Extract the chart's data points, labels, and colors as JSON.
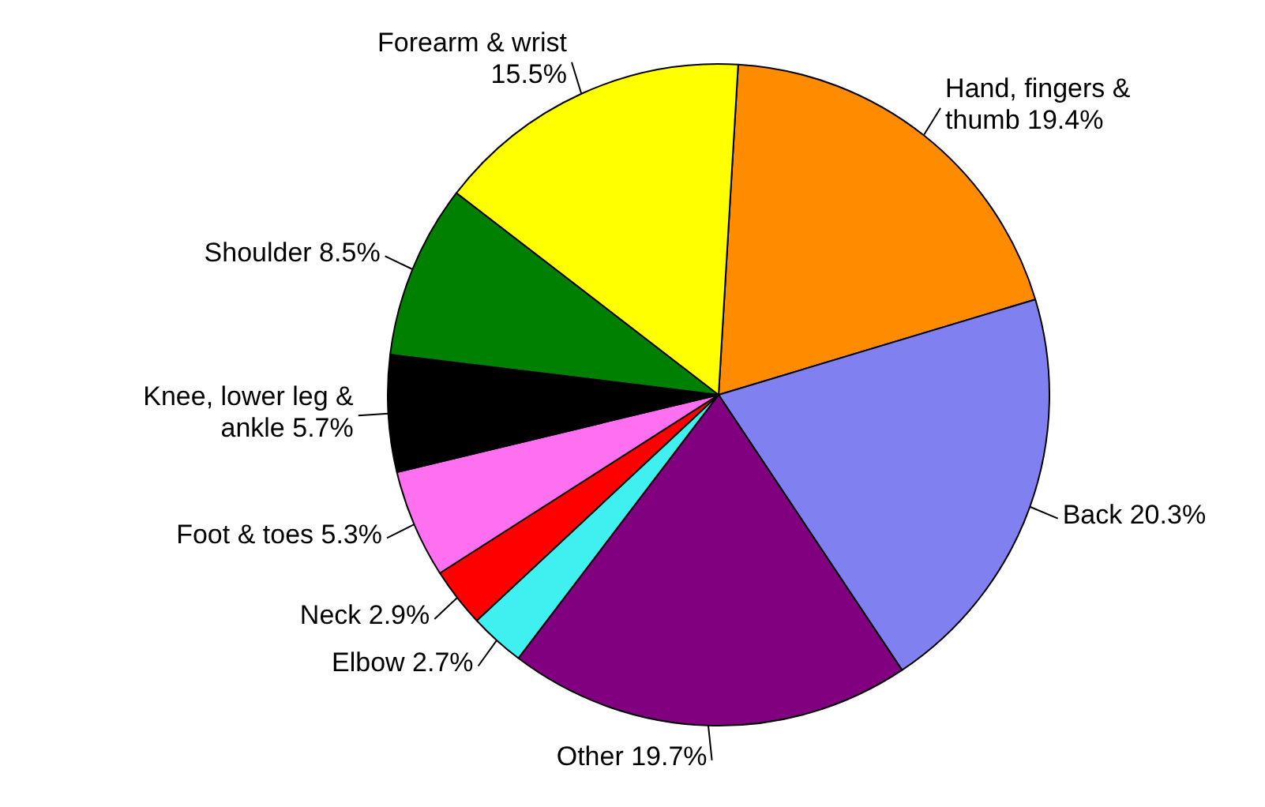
{
  "chart_data": {
    "type": "pie",
    "categories": [
      "Hand, fingers & thumb",
      "Back",
      "Other",
      "Elbow",
      "Neck",
      "Foot & toes",
      "Knee, lower leg & ankle",
      "Shoulder",
      "Forearm & wrist"
    ],
    "values": [
      19.4,
      20.3,
      19.7,
      2.7,
      2.9,
      5.3,
      5.7,
      8.5,
      15.5
    ],
    "value_labels": [
      "19.4%",
      "20.3%",
      "19.7%",
      "2.7%",
      "2.9%",
      "5.3%",
      "5.7%",
      "8.5%",
      "15.5%"
    ],
    "colors": [
      "#ff8c00",
      "#8080f0",
      "#800080",
      "#40f0f0",
      "#ff0000",
      "#ff70f0",
      "#000000",
      "#008000",
      "#ffff00"
    ],
    "legend": false
  }
}
